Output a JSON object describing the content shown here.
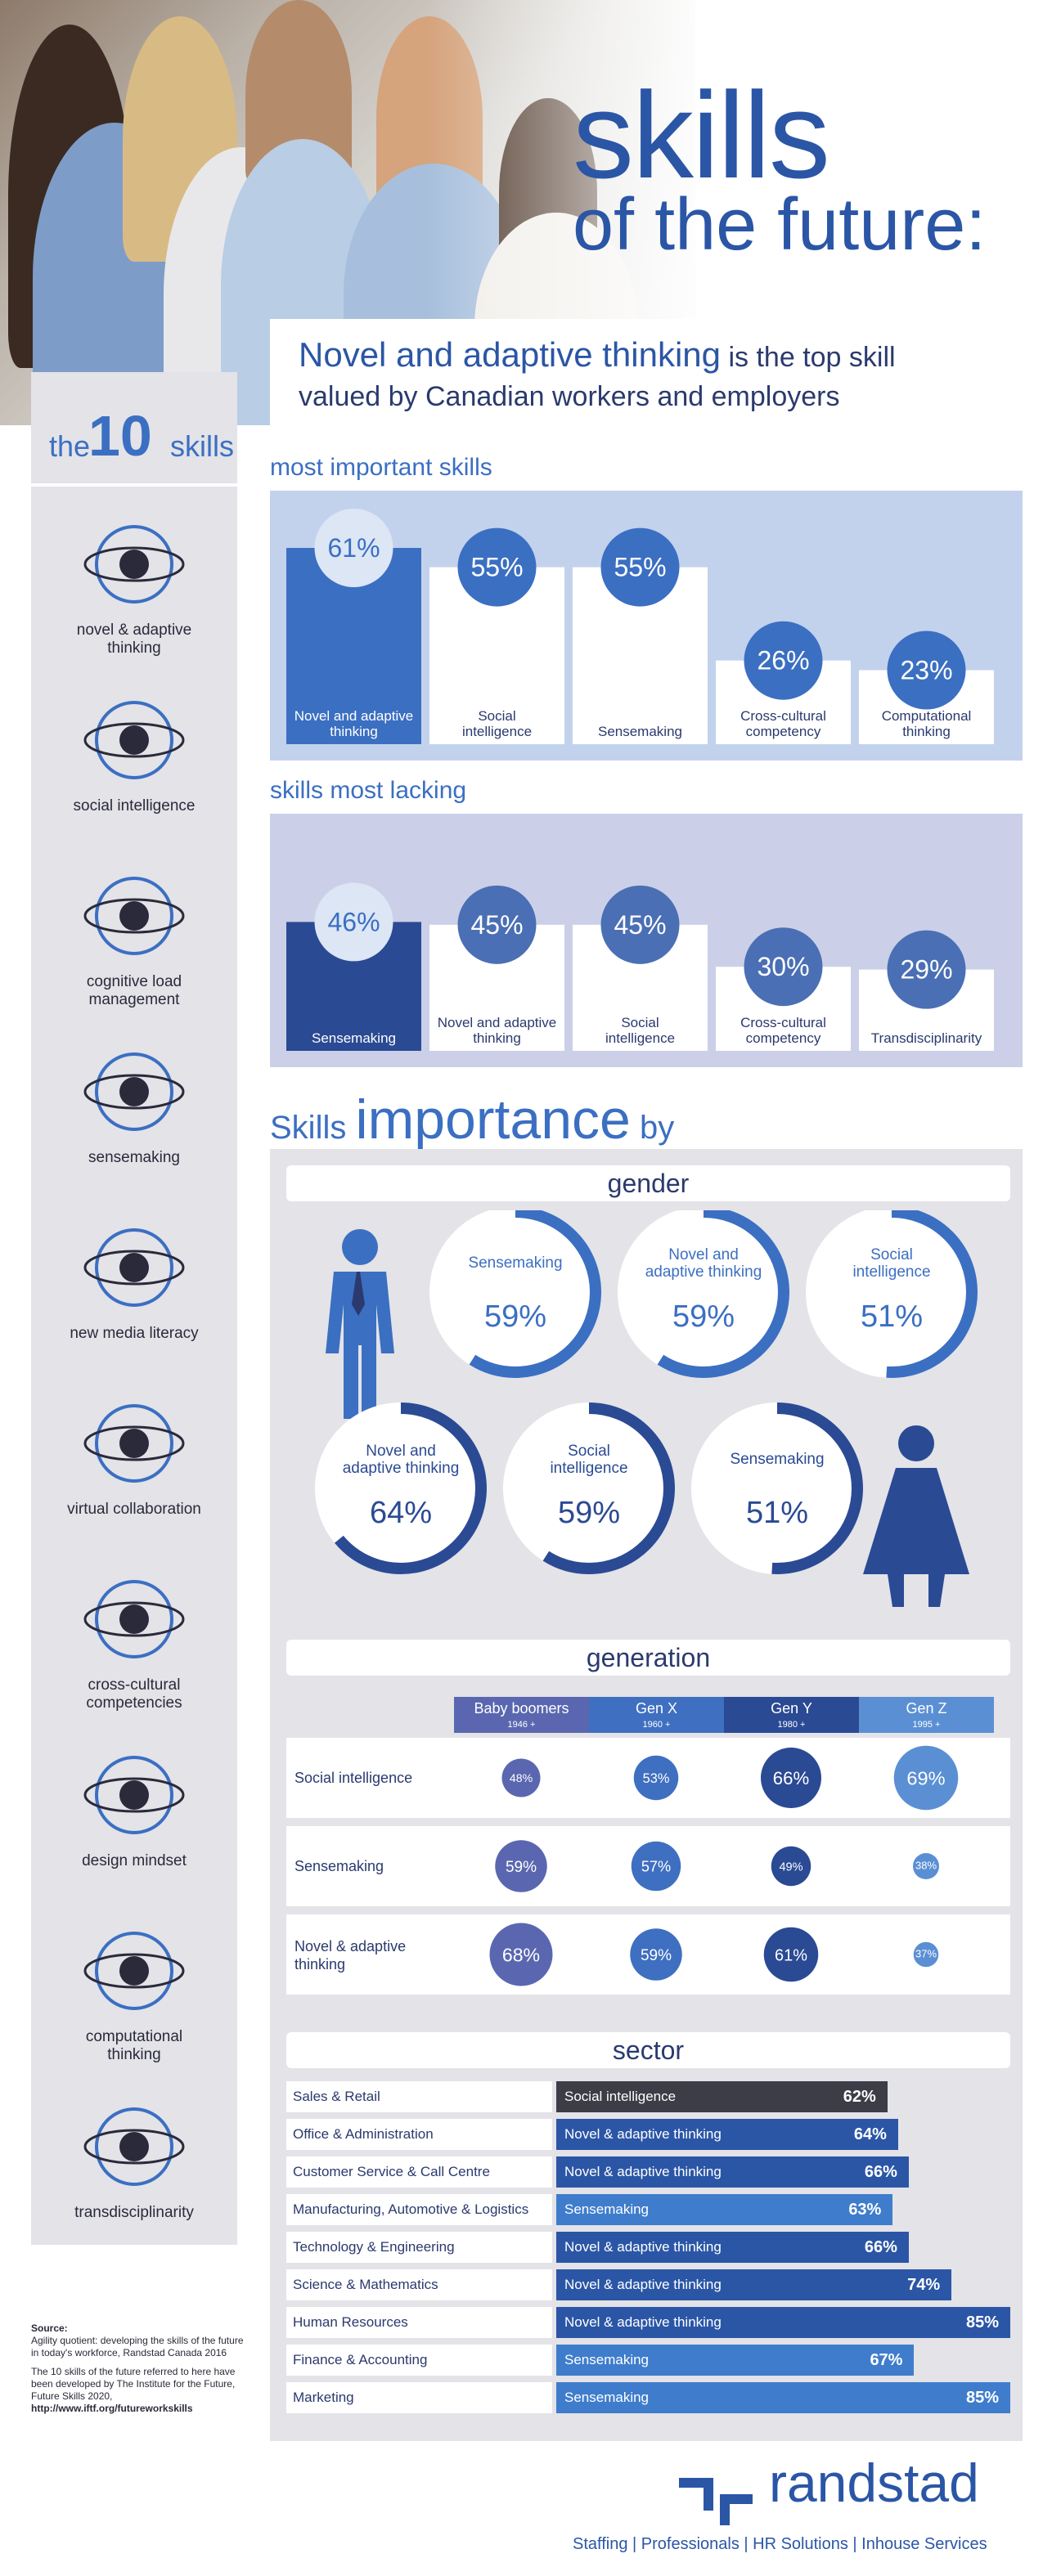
{
  "title": {
    "big": "skills",
    "sub": "of the future:"
  },
  "subhead": {
    "highlight": "Novel and adaptive thinking",
    "rest": " is the top skill",
    "line2": "valued by Canadian workers and employers"
  },
  "sidebar": {
    "head": {
      "the": "the",
      "ten": "10",
      "skills": "skills"
    },
    "items": [
      {
        "label": "novel & adaptive thinking",
        "icon": "atom-icon"
      },
      {
        "label": "social intelligence",
        "icon": "people-network-icon"
      },
      {
        "label": "cognitive load management",
        "icon": "devices-icon"
      },
      {
        "label": "sensemaking",
        "icon": "globe-person-icon"
      },
      {
        "label": "new media literacy",
        "icon": "laptop-mail-icon"
      },
      {
        "label": "virtual collaboration",
        "icon": "exchange-icon"
      },
      {
        "label": "cross-cultural competencies",
        "icon": "gear-globe-icon"
      },
      {
        "label": "design mindset",
        "icon": "lightbulb-icon"
      },
      {
        "label": "computational thinking",
        "icon": "monitor-gears-icon"
      },
      {
        "label": "transdisciplinarity",
        "icon": "person-hub-icon"
      }
    ]
  },
  "sections": {
    "important": "most important skills",
    "lacking": "skills most lacking",
    "importance_prefix": "Skills",
    "importance_big": "importance",
    "importance_suffix": "by",
    "gender": "gender",
    "generation": "generation",
    "sector": "sector"
  },
  "chart_data": [
    {
      "type": "bar",
      "title": "most important skills",
      "categories": [
        "Novel and adaptive thinking",
        "Social intelligence",
        "Sensemaking",
        "Cross-cultural competency",
        "Computational thinking"
      ],
      "values": [
        61,
        55,
        55,
        26,
        23
      ],
      "labels": [
        "61%",
        "55%",
        "55%",
        "26%",
        "23%"
      ]
    },
    {
      "type": "bar",
      "title": "skills most lacking",
      "categories": [
        "Sensemaking",
        "Novel and adaptive thinking",
        "Social intelligence",
        "Cross-cultural competency",
        "Transdisciplinarity"
      ],
      "values": [
        46,
        45,
        45,
        30,
        29
      ],
      "labels": [
        "46%",
        "45%",
        "45%",
        "30%",
        "29%"
      ]
    },
    {
      "type": "pie",
      "title": "gender",
      "groups": [
        {
          "name": "male",
          "items": [
            {
              "label": "Sensemaking",
              "value": 59,
              "text": "59%"
            },
            {
              "label": "Novel and adaptive thinking",
              "value": 59,
              "text": "59%"
            },
            {
              "label": "Social intelligence",
              "value": 51,
              "text": "51%"
            }
          ]
        },
        {
          "name": "female",
          "items": [
            {
              "label": "Novel and adaptive thinking",
              "value": 64,
              "text": "64%"
            },
            {
              "label": "Social intelligence",
              "value": 59,
              "text": "59%"
            },
            {
              "label": "Sensemaking",
              "value": 51,
              "text": "51%"
            }
          ]
        }
      ]
    },
    {
      "type": "table",
      "title": "generation",
      "columns": [
        {
          "name": "Baby boomers",
          "sub": "1946 +",
          "color": "#5a67b0"
        },
        {
          "name": "Gen X",
          "sub": "1960 +",
          "color": "#3f6fc0"
        },
        {
          "name": "Gen Y",
          "sub": "1980 +",
          "color": "#2b4a94"
        },
        {
          "name": "Gen Z",
          "sub": "1995 +",
          "color": "#5b8fd4"
        }
      ],
      "rows": [
        {
          "label": "Social intelligence",
          "values": [
            48,
            53,
            66,
            69
          ],
          "texts": [
            "48%",
            "53%",
            "66%",
            "69%"
          ]
        },
        {
          "label": "Sensemaking",
          "values": [
            59,
            57,
            49,
            38
          ],
          "texts": [
            "59%",
            "57%",
            "49%",
            "38%"
          ]
        },
        {
          "label": "Novel & adaptive thinking",
          "values": [
            68,
            59,
            61,
            37
          ],
          "texts": [
            "68%",
            "59%",
            "61%",
            "37%"
          ]
        }
      ]
    },
    {
      "type": "bar",
      "title": "sector",
      "rows": [
        {
          "sector": "Sales & Retail",
          "skill": "Social intelligence",
          "value": 62,
          "text": "62%",
          "color": "#3d3d48"
        },
        {
          "sector": "Office & Administration",
          "skill": "Novel & adaptive thinking",
          "value": 64,
          "text": "64%",
          "color": "#2b56a6"
        },
        {
          "sector": "Customer Service & Call Centre",
          "skill": "Novel & adaptive thinking",
          "value": 66,
          "text": "66%",
          "color": "#2b56a6"
        },
        {
          "sector": "Manufacturing, Automotive & Logistics",
          "skill": "Sensemaking",
          "value": 63,
          "text": "63%",
          "color": "#3f7dcc"
        },
        {
          "sector": "Technology & Engineering",
          "skill": "Novel & adaptive thinking",
          "value": 66,
          "text": "66%",
          "color": "#2b56a6"
        },
        {
          "sector": "Science & Mathematics",
          "skill": "Novel & adaptive thinking",
          "value": 74,
          "text": "74%",
          "color": "#2b56a6"
        },
        {
          "sector": "Human Resources",
          "skill": "Novel & adaptive thinking",
          "value": 85,
          "text": "85%",
          "color": "#2b56a6"
        },
        {
          "sector": "Finance & Accounting",
          "skill": "Sensemaking",
          "value": 67,
          "text": "67%",
          "color": "#3f7dcc"
        },
        {
          "sector": "Marketing",
          "skill": "Sensemaking",
          "value": 85,
          "text": "85%",
          "color": "#3f7dcc"
        }
      ]
    }
  ],
  "source": {
    "heading": "Source:",
    "line1": "Agility quotient: developing the skills of the future in today's workforce, Randstad Canada 2016",
    "line2": "The 10 skills of the future referred to here have been developed by The Institute for the Future, Future Skills 2020,",
    "url": "http://www.iftf.org/futureworkskills"
  },
  "footer": {
    "logo": "randstad",
    "tagline": "Staffing | Professionals | HR Solutions | Inhouse Services"
  },
  "colors": {
    "brand": "#2b56a6",
    "panel": "#c3d2ec",
    "panel2": "#cbd0e8",
    "sidebar": "#e3e3e8"
  }
}
